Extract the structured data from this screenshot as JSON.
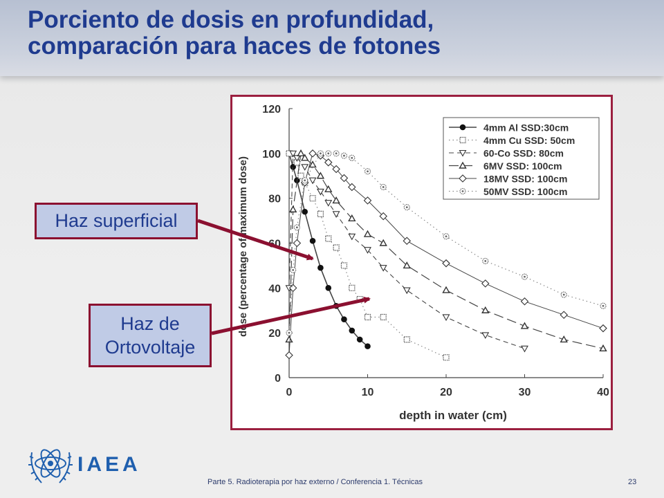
{
  "slide": {
    "title_line1": "Porciento de dosis en profundidad,",
    "title_line2": "comparación para haces de fotones",
    "callout_superficial": "Haz superficial",
    "callout_orto_line1": "Haz de",
    "callout_orto_line2": "Ortovoltaje",
    "logo_text": "IAEA",
    "footer": "Parte 5.  Radioterapia por haz externo / Conferencia 1. Técnicas",
    "page_number": "23",
    "colors": {
      "title": "#1f3b8f",
      "frame": "#9b1f3f",
      "callout_bg": "#c0cbe6",
      "arrow": "#8b1030"
    }
  },
  "chart_data": {
    "type": "line",
    "xlabel": "depth in water (cm)",
    "ylabel": "dose (percentage of maximum dose)",
    "xlim": [
      0,
      40
    ],
    "ylim": [
      0,
      120
    ],
    "x_ticks": [
      "0",
      "10",
      "20",
      "30",
      "40"
    ],
    "y_ticks": [
      "0",
      "20",
      "40",
      "60",
      "80",
      "100",
      "120"
    ],
    "legend_position": "top-right",
    "grid": false,
    "series": [
      {
        "name": "4mm Al SSD:30cm",
        "marker": "filled-circle",
        "line": "solid",
        "points": [
          [
            0,
            100
          ],
          [
            0.5,
            94
          ],
          [
            1,
            88
          ],
          [
            2,
            74
          ],
          [
            3,
            61
          ],
          [
            4,
            49
          ],
          [
            5,
            40
          ],
          [
            6,
            32
          ],
          [
            7,
            26
          ],
          [
            8,
            21
          ],
          [
            9,
            17
          ],
          [
            10,
            14
          ]
        ]
      },
      {
        "name": "4mm Cu SSD: 50cm",
        "marker": "dotted-square",
        "line": "dotted",
        "points": [
          [
            0,
            100
          ],
          [
            1,
            96
          ],
          [
            1.5,
            90
          ],
          [
            2,
            87
          ],
          [
            3,
            80
          ],
          [
            4,
            73
          ],
          [
            5,
            62
          ],
          [
            6,
            58
          ],
          [
            7,
            50
          ],
          [
            8,
            40
          ],
          [
            9,
            35
          ],
          [
            10,
            27
          ],
          [
            12,
            27
          ],
          [
            15,
            17
          ],
          [
            20,
            9
          ]
        ]
      },
      {
        "name": "60-Co SSD: 80cm",
        "marker": "open-triangle-down",
        "line": "dashed",
        "points": [
          [
            0,
            40
          ],
          [
            0.5,
            100
          ],
          [
            1,
            98
          ],
          [
            2,
            94
          ],
          [
            3,
            88
          ],
          [
            4,
            83
          ],
          [
            5,
            78
          ],
          [
            6,
            73
          ],
          [
            8,
            63
          ],
          [
            10,
            57
          ],
          [
            12,
            49
          ],
          [
            15,
            39
          ],
          [
            20,
            27
          ],
          [
            25,
            19
          ],
          [
            30,
            13
          ]
        ]
      },
      {
        "name": "6MV SSD: 100cm",
        "marker": "open-triangle-up",
        "line": "long-dash",
        "points": [
          [
            0,
            17
          ],
          [
            0.5,
            75
          ],
          [
            1.5,
            100
          ],
          [
            2,
            98
          ],
          [
            3,
            95
          ],
          [
            4,
            90
          ],
          [
            5,
            84
          ],
          [
            6,
            79
          ],
          [
            8,
            71
          ],
          [
            10,
            64
          ],
          [
            12,
            60
          ],
          [
            15,
            50
          ],
          [
            20,
            39
          ],
          [
            25,
            30
          ],
          [
            30,
            23
          ],
          [
            35,
            17
          ],
          [
            40,
            13
          ]
        ]
      },
      {
        "name": "18MV SSD: 100cm",
        "marker": "open-diamond",
        "line": "thin-solid",
        "points": [
          [
            0,
            10
          ],
          [
            0.5,
            40
          ],
          [
            1,
            60
          ],
          [
            2,
            87
          ],
          [
            3,
            100
          ],
          [
            4,
            99
          ],
          [
            5,
            96
          ],
          [
            6,
            93
          ],
          [
            7,
            89
          ],
          [
            8,
            85
          ],
          [
            10,
            79
          ],
          [
            12,
            72
          ],
          [
            15,
            61
          ],
          [
            20,
            51
          ],
          [
            25,
            42
          ],
          [
            30,
            34
          ],
          [
            35,
            28
          ],
          [
            40,
            22
          ]
        ]
      },
      {
        "name": "50MV SSD: 100cm",
        "marker": "dotted-circle",
        "line": "dotted",
        "points": [
          [
            0,
            20
          ],
          [
            0.5,
            48
          ],
          [
            1,
            67
          ],
          [
            2,
            88
          ],
          [
            4,
            100
          ],
          [
            5,
            100
          ],
          [
            6,
            100
          ],
          [
            7,
            99
          ],
          [
            8,
            98
          ],
          [
            10,
            92
          ],
          [
            12,
            85
          ],
          [
            15,
            76
          ],
          [
            20,
            63
          ],
          [
            25,
            52
          ],
          [
            30,
            45
          ],
          [
            35,
            37
          ],
          [
            40,
            32
          ]
        ]
      }
    ]
  }
}
